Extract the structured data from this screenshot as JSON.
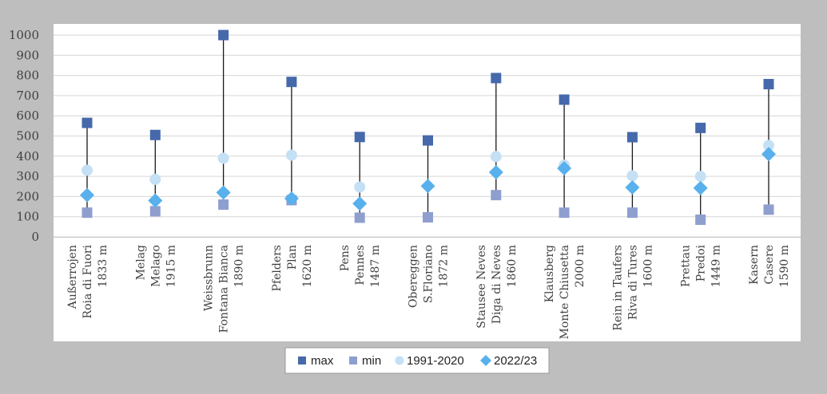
{
  "chart_data": {
    "type": "scatter",
    "title": "",
    "xlabel": "",
    "ylabel": "",
    "ylim": [
      0,
      1000
    ],
    "yticks": [
      0,
      100,
      200,
      300,
      400,
      500,
      600,
      700,
      800,
      900,
      1000
    ],
    "grid": "horizontal",
    "legend_position": "bottom",
    "categories": [
      {
        "lines": [
          "Außerrojen",
          "Roia di Fuori",
          "1833 m"
        ]
      },
      {
        "lines": [
          "Melag",
          "Melago",
          "1915 m"
        ]
      },
      {
        "lines": [
          "Weissbrunn",
          "Fontana Bianca",
          "1890 m"
        ]
      },
      {
        "lines": [
          "Pfelders",
          "Plan",
          "1620 m"
        ]
      },
      {
        "lines": [
          "Pens",
          "Pennes",
          "1487 m"
        ]
      },
      {
        "lines": [
          "Obereggen",
          "S.Floriano",
          "1872 m"
        ]
      },
      {
        "lines": [
          "Stausee Neves",
          "Diga di Neves",
          "1860 m"
        ]
      },
      {
        "lines": [
          "Klausberg",
          "Monte Chiusetta",
          "2000 m"
        ]
      },
      {
        "lines": [
          "Rein in Taufers",
          "Riva di Tures",
          "1600 m"
        ]
      },
      {
        "lines": [
          "Prettau",
          "Predoi",
          "1449 m"
        ]
      },
      {
        "lines": [
          "Kasern",
          "Casere",
          "1590 m"
        ]
      }
    ],
    "series": [
      {
        "name": "max",
        "marker": "square",
        "color": "#4569ab",
        "values": [
          565,
          505,
          1000,
          768,
          495,
          478,
          787,
          680,
          494,
          540,
          757
        ]
      },
      {
        "name": "min",
        "marker": "square",
        "color": "#8e9fcf",
        "values": [
          120,
          127,
          160,
          182,
          95,
          97,
          207,
          120,
          120,
          85,
          135
        ]
      },
      {
        "name": "1991-2020",
        "marker": "circle",
        "color": "#c4e0f5",
        "values": [
          330,
          285,
          390,
          405,
          247,
          null,
          398,
          355,
          303,
          300,
          453
        ]
      },
      {
        "name": "2022/23",
        "marker": "diamond",
        "color": "#58b0ec",
        "values": [
          207,
          180,
          220,
          190,
          165,
          252,
          320,
          340,
          245,
          242,
          410
        ]
      }
    ]
  }
}
